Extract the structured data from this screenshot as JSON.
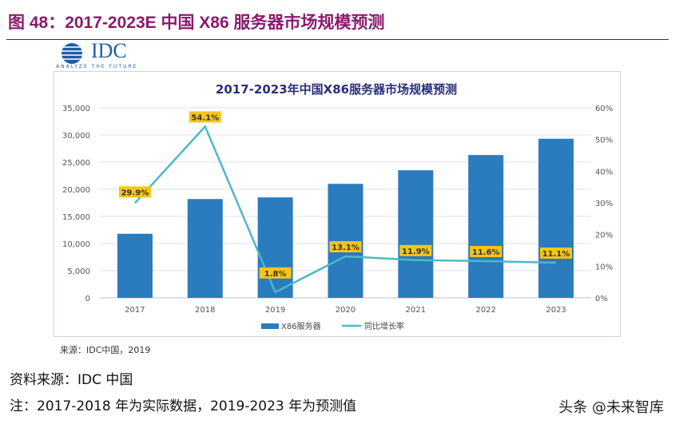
{
  "header": {
    "title": "图 48：2017-2023E 中国 X86 服务器市场规模预测"
  },
  "logo": {
    "text": "IDC",
    "tagline": "ANALYZE THE FUTURE"
  },
  "chart_data": {
    "type": "bar+line",
    "title": "2017-2023年中国X86服务器市场规模预测",
    "categories": [
      "2017",
      "2018",
      "2019",
      "2020",
      "2021",
      "2022",
      "2023"
    ],
    "series": [
      {
        "name": "X86服务器",
        "type": "bar",
        "axis": "left",
        "color": "#2b7bbf",
        "values": [
          11800,
          18200,
          18500,
          21000,
          23500,
          26300,
          29300
        ]
      },
      {
        "name": "同比增长率",
        "type": "line",
        "axis": "right",
        "color": "#4db8c8",
        "values": [
          29.9,
          54.1,
          1.8,
          13.1,
          11.9,
          11.6,
          11.1
        ],
        "labels": [
          "29.9%",
          "54.1%",
          "1.8%",
          "13.1%",
          "11.9%",
          "11.6%",
          "11.1%"
        ]
      }
    ],
    "y_left": {
      "ylim": [
        0,
        35000
      ],
      "ticks": [
        "0",
        "5,000",
        "10,000",
        "15,000",
        "20,000",
        "25,000",
        "30,000",
        "35,000"
      ]
    },
    "y_right": {
      "ylim": [
        0,
        60
      ],
      "ticks": [
        "0%",
        "10%",
        "20%",
        "30%",
        "40%",
        "50%",
        "60%"
      ]
    },
    "grid": true,
    "legend": "bottom",
    "label_color": "#f5c518",
    "source": "来源：IDC中国，2019"
  },
  "notes": {
    "source": "资料来源：IDC 中国",
    "note": "注：2017-2018 年为实际数据，2019-2023 年为预测值"
  },
  "watermark": "头条 @未来智库"
}
